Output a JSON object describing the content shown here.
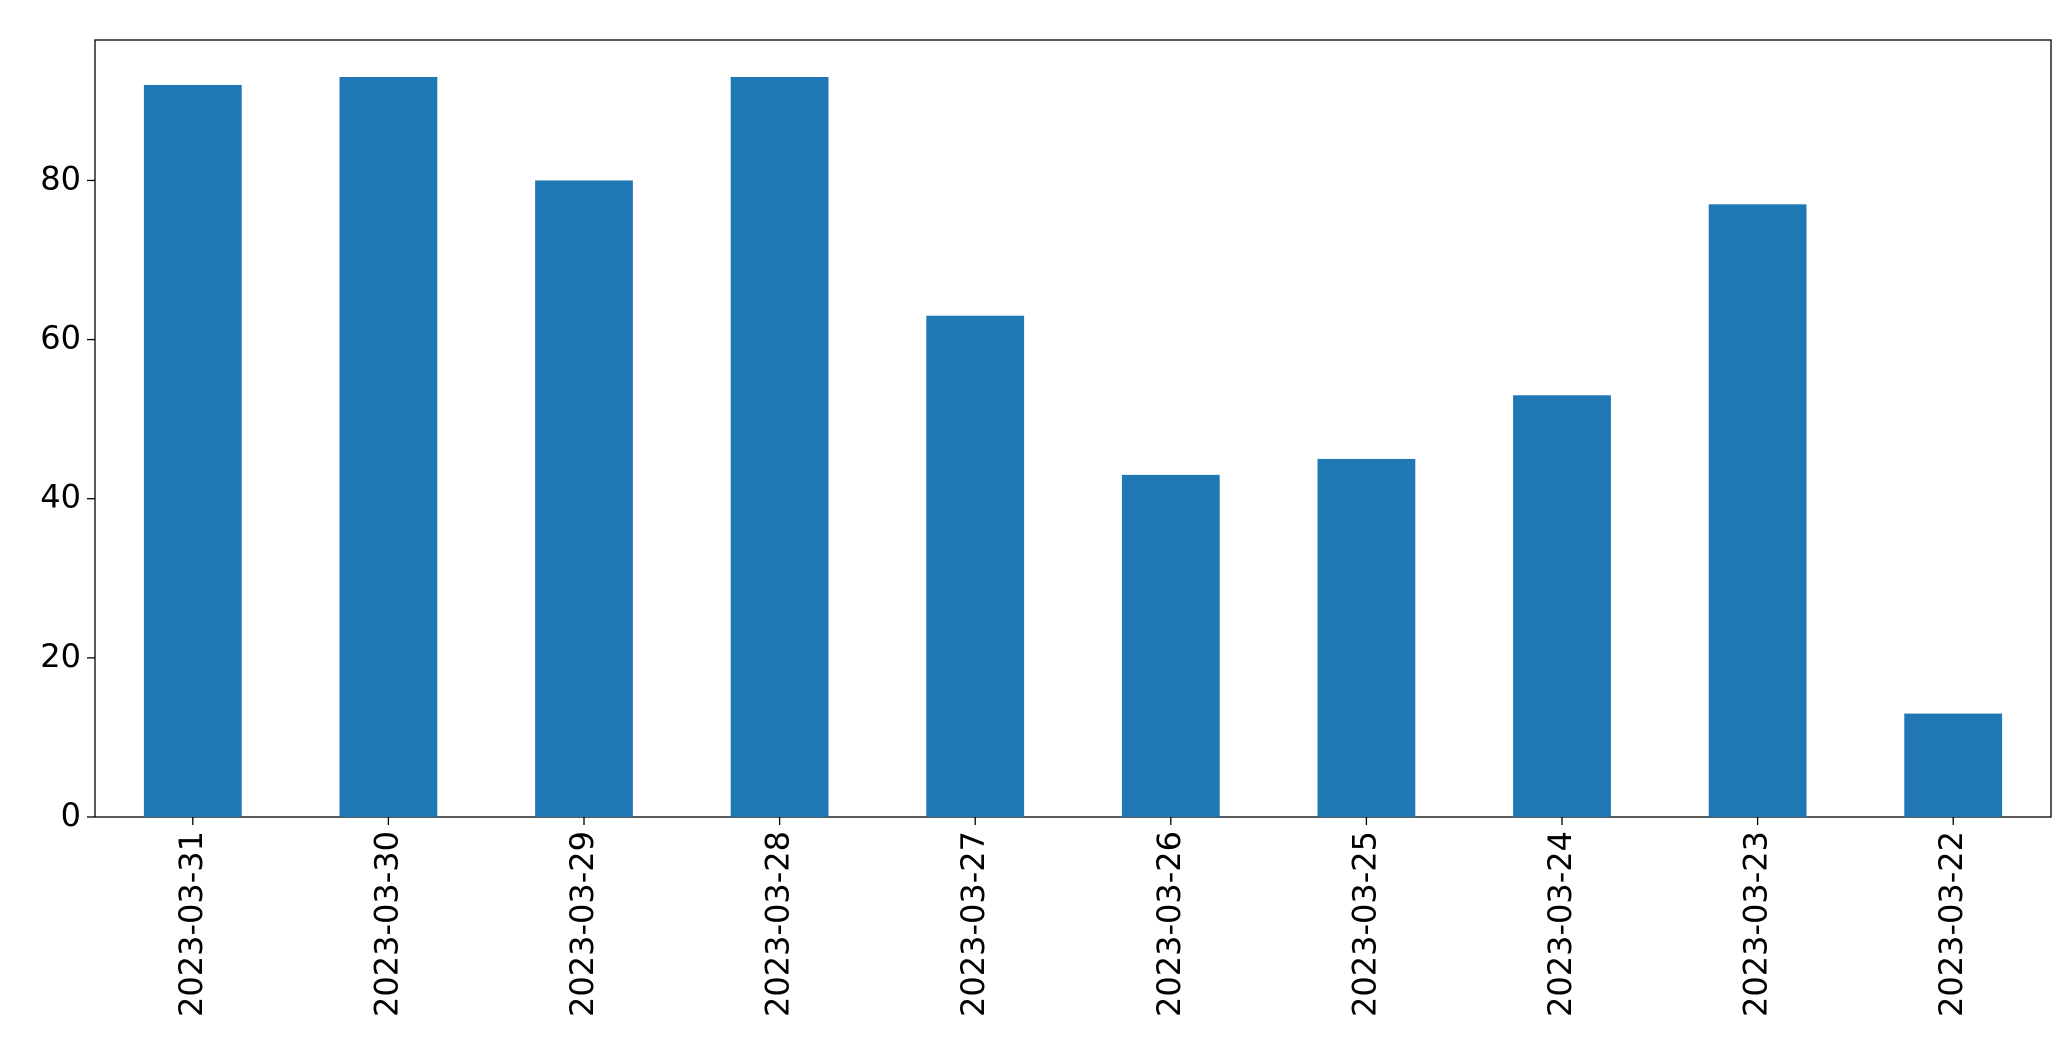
{
  "chart_data": {
    "type": "bar",
    "categories": [
      "2023-03-31",
      "2023-03-30",
      "2023-03-29",
      "2023-03-28",
      "2023-03-27",
      "2023-03-26",
      "2023-03-25",
      "2023-03-24",
      "2023-03-23",
      "2023-03-22"
    ],
    "values": [
      92,
      93,
      80,
      93,
      63,
      43,
      45,
      53,
      77,
      13
    ],
    "color": "#1f77b4",
    "ylim": [
      0,
      97.65
    ],
    "yticks": [
      0,
      20,
      40,
      60,
      80
    ],
    "grid": false
  }
}
